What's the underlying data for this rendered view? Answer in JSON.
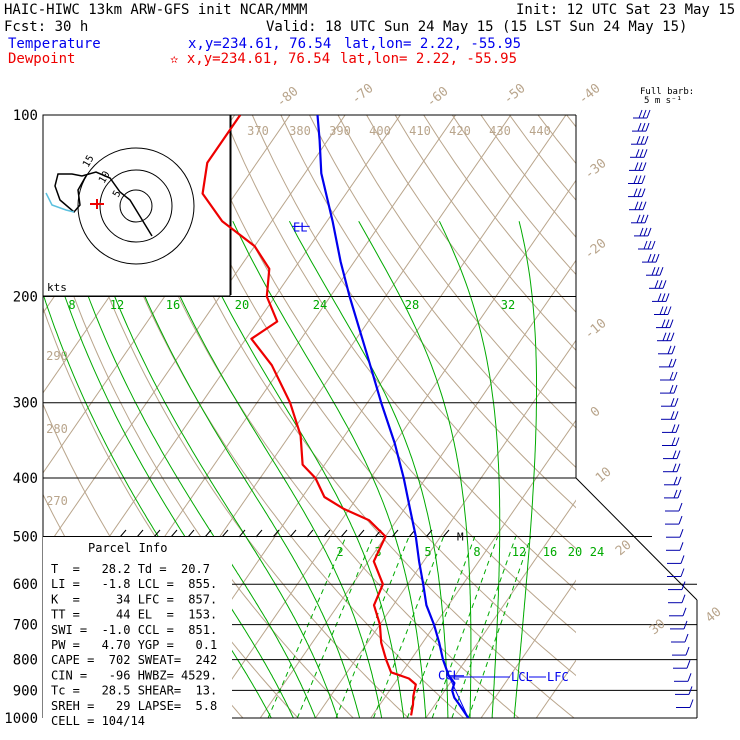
{
  "header": {
    "left1": "HAIC-HIWC 13km ARW-GFS init   NCAR/MMM",
    "init": "Init: 12 UTC Sat 23 May 15",
    "fcst": "Fcst:   30 h",
    "valid": "Valid: 18 UTC Sun 24 May 15 (15 LST Sun 24 May 15)",
    "temp_label": "Temperature",
    "dew_label": "Dewpoint",
    "temp_xy": "x,y=234.61, 76.54",
    "temp_latlon": "lat,lon=  2.22, -55.95",
    "dew_xy": "✫ x,y=234.61, 76.54",
    "dew_latlon": "lat,lon=  2.22, -55.95"
  },
  "colors": {
    "temperature": "#0000ee",
    "dewpoint": "#ee0000",
    "isotherm": "#b9a58c",
    "adiabat": "#b9a58c",
    "moist": "#00aa00",
    "grid": "#000000"
  },
  "barb_note": {
    "line1": "Full barb:",
    "line2": "5 m s⁻¹"
  },
  "hodograph": {
    "units": "kts",
    "ring_labels": [
      "15",
      "10",
      "5"
    ]
  },
  "parcel_info": {
    "title": "Parcel Info",
    "rows": [
      "T  =   28.2 Td =  20.7",
      "LI =   -1.8 LCL =  855.",
      "K  =     34 LFC =  857.",
      "TT =     44 EL  =  153.",
      "SWI =  -1.0 CCL =  851.",
      "PW =   4.70 YGP =   0.1",
      "CAPE =  702 SWEAT=  242",
      "CIN =   -96 HWBZ= 4529.",
      "Tc =   28.5 SHEAR=  13.",
      "SREH =   29 LAPSE=  5.8",
      "CELL = 104/14"
    ]
  },
  "level_labels": {
    "el": "EL",
    "ccl": "CCL",
    "lcl": "LCL",
    "lfc": "LFC",
    "m": "M"
  },
  "chart_data": {
    "type": "line",
    "chart_kind": "Skew-T log-P",
    "y_axis": {
      "label": "Pressure (hPa)",
      "scale": "log",
      "range": [
        1000,
        100
      ],
      "ticks": [
        100,
        200,
        300,
        400,
        500,
        600,
        700,
        800,
        900,
        1000
      ]
    },
    "isotherm_labels": [
      "-80",
      "-70",
      "-60",
      "-50",
      "-40",
      "-30",
      "-20",
      "-10",
      "0",
      "10",
      "20",
      "30",
      "40"
    ],
    "theta_labels": [
      "370",
      "380",
      "390",
      "400",
      "410",
      "420",
      "430",
      "440",
      "290",
      "280",
      "270"
    ],
    "mixing_ratio_upper": [
      "8",
      "12",
      "16",
      "20",
      "24",
      "28",
      "32"
    ],
    "mixing_ratio_lower": [
      "2",
      "3",
      "5",
      "8",
      "12",
      "16",
      "20",
      "24"
    ],
    "series": [
      {
        "name": "Temperature",
        "points": [
          [
            1000,
            27.7
          ],
          [
            950,
            24.4
          ],
          [
            925,
            22.6
          ],
          [
            900,
            21.3
          ],
          [
            875,
            20.8
          ],
          [
            850,
            18.8
          ],
          [
            800,
            15.8
          ],
          [
            750,
            13.0
          ],
          [
            700,
            9.8
          ],
          [
            650,
            6.0
          ],
          [
            600,
            2.8
          ],
          [
            550,
            -0.8
          ],
          [
            500,
            -4.5
          ],
          [
            450,
            -9.0
          ],
          [
            400,
            -14.0
          ],
          [
            350,
            -20.0
          ],
          [
            300,
            -27.5
          ],
          [
            250,
            -36.0
          ],
          [
            200,
            -46.5
          ],
          [
            175,
            -52.5
          ],
          [
            150,
            -59.0
          ],
          [
            125,
            -67.0
          ],
          [
            110,
            -71.5
          ],
          [
            100,
            -75.0
          ]
        ]
      },
      {
        "name": "Dewpoint",
        "points": [
          [
            990,
            17.0
          ],
          [
            950,
            16.0
          ],
          [
            920,
            15.0
          ],
          [
            880,
            14.0
          ],
          [
            860,
            12.0
          ],
          [
            840,
            8.0
          ],
          [
            800,
            5.5
          ],
          [
            750,
            2.5
          ],
          [
            700,
            0.0
          ],
          [
            650,
            -3.5
          ],
          [
            600,
            -4.5
          ],
          [
            550,
            -9.0
          ],
          [
            500,
            -10.0
          ],
          [
            470,
            -15.0
          ],
          [
            450,
            -21.0
          ],
          [
            430,
            -26.0
          ],
          [
            400,
            -30.0
          ],
          [
            380,
            -34.0
          ],
          [
            340,
            -38.0
          ],
          [
            300,
            -44.0
          ],
          [
            260,
            -52.0
          ],
          [
            235,
            -59.0
          ],
          [
            220,
            -56.5
          ],
          [
            200,
            -61.5
          ],
          [
            180,
            -64.5
          ],
          [
            165,
            -70.0
          ],
          [
            150,
            -79.0
          ],
          [
            135,
            -86.0
          ],
          [
            120,
            -89.0
          ],
          [
            100,
            -89.0
          ]
        ]
      }
    ]
  }
}
